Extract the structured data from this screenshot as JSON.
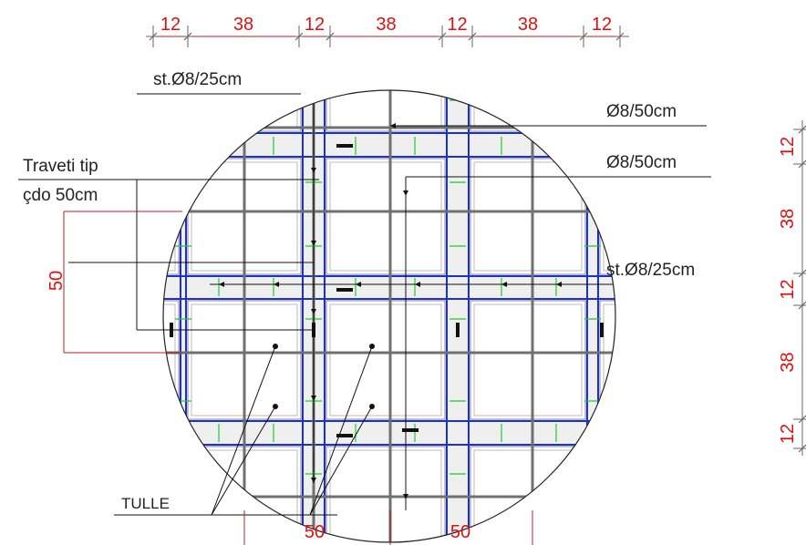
{
  "dimensions": {
    "top": [
      "12",
      "38",
      "12",
      "38",
      "12",
      "38",
      "12"
    ],
    "right": [
      "12",
      "38",
      "12",
      "38",
      "12"
    ],
    "left": "50",
    "bottom": [
      "50",
      "50"
    ]
  },
  "labels": {
    "stirrup_top": "st.Ø8/25cm",
    "bar_1": "Ø8/50cm",
    "bar_2": "Ø8/50cm",
    "joist_1": "Traveti tip",
    "joist_2": "çdo 50cm",
    "stirrup_mid": "st.Ø8/25cm",
    "blocks": "TULLE"
  }
}
